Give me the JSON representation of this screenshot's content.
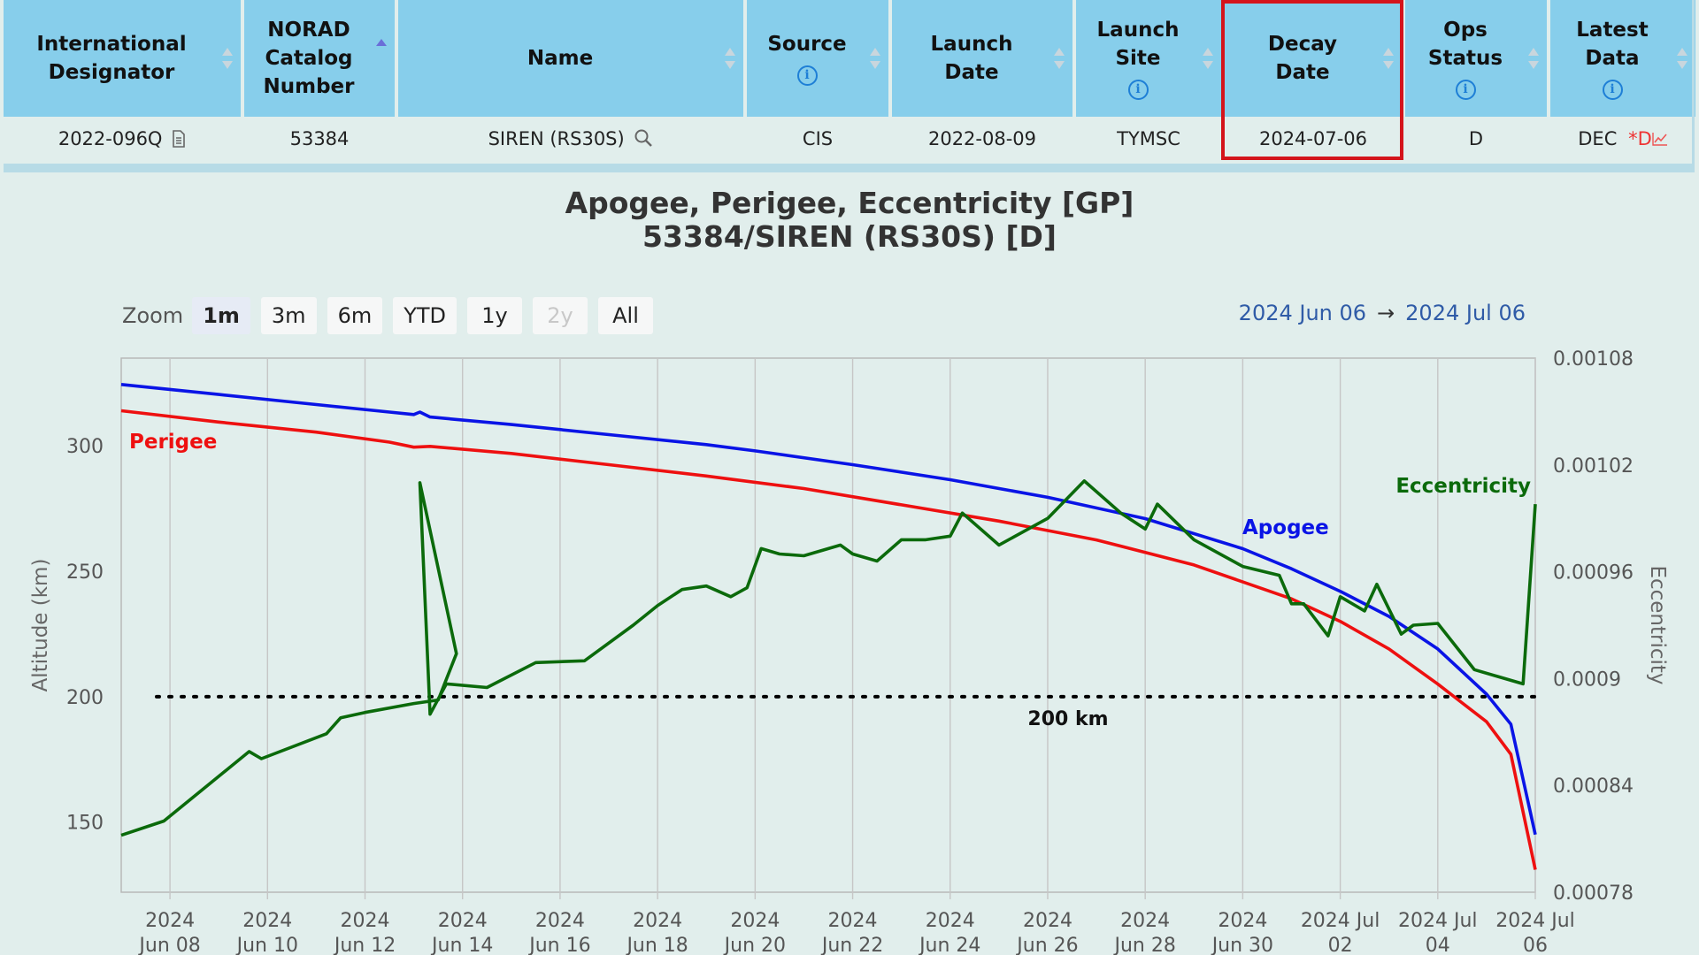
{
  "table": {
    "headers": [
      {
        "label": "International\nDesignator",
        "info": false,
        "sort": "both"
      },
      {
        "label": "NORAD\nCatalog\nNumber",
        "info": false,
        "sort": "asc"
      },
      {
        "label": "Name",
        "info": false,
        "sort": "both"
      },
      {
        "label": "Source",
        "info": true,
        "sort": "both"
      },
      {
        "label": "Launch\nDate",
        "info": false,
        "sort": "both"
      },
      {
        "label": "Launch\nSite",
        "info": true,
        "sort": "both"
      },
      {
        "label": "Decay\nDate",
        "info": false,
        "sort": "both"
      },
      {
        "label": "Ops\nStatus",
        "info": true,
        "sort": "both"
      },
      {
        "label": "Latest\nData",
        "info": true,
        "sort": "both"
      }
    ],
    "row": {
      "intl_designator": "2022-096Q",
      "norad": "53384",
      "name": "SIREN (RS30S)",
      "source": "CIS",
      "launch_date": "2022-08-09",
      "launch_site": "TYMSC",
      "decay_date": "2024-07-06",
      "ops_status": "D",
      "latest_data": "DEC",
      "latest_data_flag": "*D"
    },
    "highlight_color": "#d4141b",
    "header_color": "#87ceeb"
  },
  "zoom": {
    "label": "Zoom",
    "buttons": [
      {
        "label": "1m",
        "active": true,
        "disabled": false
      },
      {
        "label": "3m",
        "active": false,
        "disabled": false
      },
      {
        "label": "6m",
        "active": false,
        "disabled": false
      },
      {
        "label": "YTD",
        "active": false,
        "disabled": false
      },
      {
        "label": "1y",
        "active": false,
        "disabled": false
      },
      {
        "label": "2y",
        "active": false,
        "disabled": true
      },
      {
        "label": "All",
        "active": false,
        "disabled": false
      }
    ]
  },
  "range": {
    "from": "2024 Jun 06",
    "arrow": "→",
    "to": "2024 Jul 06"
  },
  "chart_data": {
    "type": "line",
    "title": "Apogee, Perigee, Eccentricity [GP]",
    "subtitle": "53384/SIREN (RS30S) [D]",
    "xlabel": "",
    "ylabel": "Altitude (km)",
    "y2label": "Eccentricity",
    "xlim": [
      "2024-06-07",
      "2024-07-06"
    ],
    "ylim": [
      122,
      335
    ],
    "y2lim": [
      0.00078,
      0.00108
    ],
    "yticks": [
      150,
      200,
      250,
      300
    ],
    "y2ticks": [
      "0.00078",
      "0.00084",
      "0.0009",
      "0.00096",
      "0.00102",
      "0.00108"
    ],
    "xticks": [
      {
        "date": "2024-06-08",
        "label": [
          "2024",
          "Jun 08"
        ]
      },
      {
        "date": "2024-06-10",
        "label": [
          "2024",
          "Jun 10"
        ]
      },
      {
        "date": "2024-06-12",
        "label": [
          "2024",
          "Jun 12"
        ]
      },
      {
        "date": "2024-06-14",
        "label": [
          "2024",
          "Jun 14"
        ]
      },
      {
        "date": "2024-06-16",
        "label": [
          "2024",
          "Jun 16"
        ]
      },
      {
        "date": "2024-06-18",
        "label": [
          "2024",
          "Jun 18"
        ]
      },
      {
        "date": "2024-06-20",
        "label": [
          "2024",
          "Jun 20"
        ]
      },
      {
        "date": "2024-06-22",
        "label": [
          "2024",
          "Jun 22"
        ]
      },
      {
        "date": "2024-06-24",
        "label": [
          "2024",
          "Jun 24"
        ]
      },
      {
        "date": "2024-06-26",
        "label": [
          "2024",
          "Jun 26"
        ]
      },
      {
        "date": "2024-06-28",
        "label": [
          "2024",
          "Jun 28"
        ]
      },
      {
        "date": "2024-06-30",
        "label": [
          "2024",
          "Jun 30"
        ]
      },
      {
        "date": "2024-07-02",
        "label": [
          "2024 Jul",
          "02"
        ]
      },
      {
        "date": "2024-07-04",
        "label": [
          "2024 Jul",
          "04"
        ]
      },
      {
        "date": "2024-07-06",
        "label": [
          "2024 Jul",
          "06"
        ]
      }
    ],
    "grid": true,
    "reference_line": {
      "y": 200,
      "label": "200 km"
    },
    "series": [
      {
        "name": "Apogee",
        "axis": "left",
        "color": "#0a14e6",
        "points": [
          [
            "2024-06-07 00:00",
            324.5
          ],
          [
            "2024-06-09 00:00",
            320.5
          ],
          [
            "2024-06-11 00:00",
            316.5
          ],
          [
            "2024-06-12 12:00",
            313.5
          ],
          [
            "2024-06-13 00:00",
            312.5
          ],
          [
            "2024-06-13 03:00",
            313.5
          ],
          [
            "2024-06-13 08:00",
            311.5
          ],
          [
            "2024-06-15 00:00",
            308.5
          ],
          [
            "2024-06-17 00:00",
            304.5
          ],
          [
            "2024-06-19 00:00",
            300.5
          ],
          [
            "2024-06-20 00:00",
            298.0
          ],
          [
            "2024-06-22 00:00",
            292.5
          ],
          [
            "2024-06-24 00:00",
            286.5
          ],
          [
            "2024-06-26 00:00",
            279.5
          ],
          [
            "2024-06-28 00:00",
            271.0
          ],
          [
            "2024-06-30 00:00",
            259.0
          ],
          [
            "2024-07-01 00:00",
            251.0
          ],
          [
            "2024-07-02 00:00",
            242.0
          ],
          [
            "2024-07-03 00:00",
            232.0
          ],
          [
            "2024-07-04 00:00",
            219.0
          ],
          [
            "2024-07-05 00:00",
            201.0
          ],
          [
            "2024-07-05 12:00",
            189.0
          ],
          [
            "2024-07-06 00:00",
            145.0
          ]
        ]
      },
      {
        "name": "Perigee",
        "axis": "left",
        "color": "#ee1010",
        "points": [
          [
            "2024-06-07 00:00",
            314.0
          ],
          [
            "2024-06-09 00:00",
            309.5
          ],
          [
            "2024-06-11 00:00",
            305.5
          ],
          [
            "2024-06-12 12:00",
            301.5
          ],
          [
            "2024-06-13 00:00",
            299.5
          ],
          [
            "2024-06-13 08:00",
            299.8
          ],
          [
            "2024-06-15 00:00",
            297.0
          ],
          [
            "2024-06-17 00:00",
            292.5
          ],
          [
            "2024-06-19 00:00",
            288.0
          ],
          [
            "2024-06-21 00:00",
            283.0
          ],
          [
            "2024-06-23 00:00",
            276.5
          ],
          [
            "2024-06-25 00:00",
            270.0
          ],
          [
            "2024-06-27 00:00",
            262.5
          ],
          [
            "2024-06-29 00:00",
            252.5
          ],
          [
            "2024-07-01 00:00",
            239.0
          ],
          [
            "2024-07-02 00:00",
            230.0
          ],
          [
            "2024-07-03 00:00",
            219.0
          ],
          [
            "2024-07-04 00:00",
            205.0
          ],
          [
            "2024-07-05 00:00",
            190.0
          ],
          [
            "2024-07-05 12:00",
            177.0
          ],
          [
            "2024-07-06 00:00",
            131.0
          ]
        ]
      },
      {
        "name": "Eccentricity",
        "axis": "right",
        "color": "#0b6a0b",
        "points": [
          [
            "2024-06-07 00:00",
            0.000812
          ],
          [
            "2024-06-07 21:00",
            0.00082
          ],
          [
            "2024-06-09 15:00",
            0.000859
          ],
          [
            "2024-06-09 21:00",
            0.000855
          ],
          [
            "2024-06-11 05:00",
            0.000869
          ],
          [
            "2024-06-11 12:00",
            0.000878
          ],
          [
            "2024-06-12 00:00",
            0.000881
          ],
          [
            "2024-06-13 00:00",
            0.000886
          ],
          [
            "2024-06-13 12:00",
            0.000888
          ],
          [
            "2024-06-13 21:00",
            0.000914
          ],
          [
            "2024-06-13 03:00",
            0.00101
          ],
          [
            "2024-06-13 08:00",
            0.00088
          ],
          [
            "2024-06-13 16:00",
            0.000897
          ],
          [
            "2024-06-14 12:00",
            0.000895
          ],
          [
            "2024-06-15 12:00",
            0.000909
          ],
          [
            "2024-06-16 12:00",
            0.00091
          ],
          [
            "2024-06-17 12:00",
            0.00093
          ],
          [
            "2024-06-18 00:00",
            0.000941
          ],
          [
            "2024-06-18 12:00",
            0.00095
          ],
          [
            "2024-06-19 00:00",
            0.000952
          ],
          [
            "2024-06-19 12:00",
            0.000946
          ],
          [
            "2024-06-19 20:00",
            0.000951
          ],
          [
            "2024-06-20 03:00",
            0.000973
          ],
          [
            "2024-06-20 12:00",
            0.00097
          ],
          [
            "2024-06-21 00:00",
            0.000969
          ],
          [
            "2024-06-21 18:00",
            0.000975
          ],
          [
            "2024-06-22 00:00",
            0.00097
          ],
          [
            "2024-06-22 12:00",
            0.000966
          ],
          [
            "2024-06-23 00:00",
            0.000978
          ],
          [
            "2024-06-23 12:00",
            0.000978
          ],
          [
            "2024-06-24 00:00",
            0.00098
          ],
          [
            "2024-06-24 06:00",
            0.000993
          ],
          [
            "2024-06-25 00:00",
            0.000975
          ],
          [
            "2024-06-26 00:00",
            0.00099
          ],
          [
            "2024-06-26 18:00",
            0.001011
          ],
          [
            "2024-06-27 12:00",
            0.000993
          ],
          [
            "2024-06-28 00:00",
            0.000984
          ],
          [
            "2024-06-28 06:00",
            0.000998
          ],
          [
            "2024-06-29 00:00",
            0.000978
          ],
          [
            "2024-06-30 00:00",
            0.000963
          ],
          [
            "2024-06-30 18:00",
            0.000958
          ],
          [
            "2024-07-01 00:00",
            0.000942
          ],
          [
            "2024-07-01 06:00",
            0.000942
          ],
          [
            "2024-07-01 18:00",
            0.000924
          ],
          [
            "2024-07-02 00:00",
            0.000946
          ],
          [
            "2024-07-02 12:00",
            0.000938
          ],
          [
            "2024-07-02 18:00",
            0.000953
          ],
          [
            "2024-07-03 06:00",
            0.000925
          ],
          [
            "2024-07-03 12:00",
            0.00093
          ],
          [
            "2024-07-04 00:00",
            0.000931
          ],
          [
            "2024-07-04 18:00",
            0.000905
          ],
          [
            "2024-07-05 06:00",
            0.000901
          ],
          [
            "2024-07-05 18:00",
            0.000897
          ],
          [
            "2024-07-06 00:00",
            0.000998
          ]
        ]
      }
    ],
    "series_labels": [
      {
        "name": "Perigee",
        "color": "#ee1010"
      },
      {
        "name": "Apogee",
        "color": "#0a14e6"
      },
      {
        "name": "Eccentricity",
        "color": "#0b6a0b"
      }
    ]
  }
}
